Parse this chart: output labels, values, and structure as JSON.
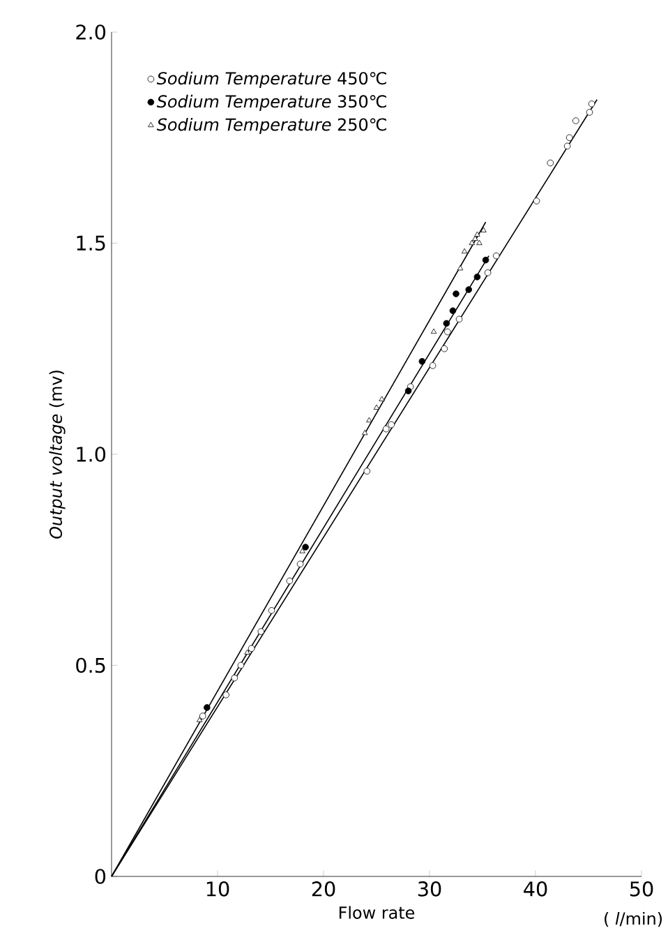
{
  "chart_data": {
    "type": "scatter",
    "xlabel": "Flow rate",
    "ylabel": "*Output voltage* (mv)",
    "annotations": [
      "( *l*/min)"
    ],
    "xlim": [
      0,
      50
    ],
    "ylim": [
      0,
      2.0
    ],
    "xticks": [
      10,
      20,
      30,
      40,
      50
    ],
    "yticks": [
      0,
      0.5,
      {
        "value": 1.0,
        "label": "1.0"
      },
      1.5,
      {
        "value": 2.0,
        "label": "2.0"
      }
    ],
    "legend": "top left",
    "grid": false,
    "series": [
      {
        "name": "*Sodium Temperature* 450℃",
        "color": "#ffffff",
        "marker": "circle",
        "x": [
          8.6,
          10.8,
          11.6,
          12.2,
          13.2,
          14.1,
          15.1,
          16.8,
          17.8,
          24.1,
          25.9,
          26.4,
          28.2,
          30.3,
          31.4,
          31.7,
          32.8,
          35.5,
          36.3,
          40.1,
          41.4,
          43.0,
          43.2,
          43.8,
          45.1,
          45.3
        ],
        "values": [
          0.38,
          0.43,
          0.47,
          0.5,
          0.54,
          0.58,
          0.63,
          0.7,
          0.74,
          0.96,
          1.06,
          1.07,
          1.16,
          1.21,
          1.25,
          1.29,
          1.32,
          1.43,
          1.47,
          1.6,
          1.69,
          1.73,
          1.75,
          1.79,
          1.81,
          1.83
        ]
      },
      {
        "name": "*Sodium Temperature* 350℃",
        "color": "#000000",
        "marker": "circle",
        "x": [
          9.0,
          18.3,
          28.0,
          29.3,
          31.6,
          32.2,
          32.5,
          33.7,
          34.5,
          35.3
        ],
        "values": [
          0.4,
          0.78,
          1.15,
          1.22,
          1.31,
          1.34,
          1.38,
          1.39,
          1.42,
          1.46
        ]
      },
      {
        "name": "*Sodium Temperature* 250℃",
        "color": "#ffffff",
        "marker": "triangle",
        "x": [
          8.3,
          12.8,
          18.0,
          23.9,
          24.3,
          25.0,
          25.5,
          30.4,
          32.9,
          33.3,
          34.0,
          34.3,
          34.5,
          34.7,
          35.1
        ],
        "values": [
          0.37,
          0.53,
          0.77,
          1.05,
          1.08,
          1.11,
          1.13,
          1.29,
          1.44,
          1.48,
          1.5,
          1.51,
          1.52,
          1.5,
          1.53
        ]
      },
      {
        "type": "line",
        "color": "#000000",
        "marker": "none",
        "line_style": "solid",
        "x": [
          0,
          45.8
        ],
        "values": [
          0,
          1.84
        ]
      },
      {
        "type": "line",
        "color": "#000000",
        "marker": "none",
        "line_style": "solid",
        "x": [
          0,
          35.6
        ],
        "values": [
          0,
          1.47
        ]
      },
      {
        "type": "line",
        "color": "#000000",
        "marker": "none",
        "line_style": "solid",
        "x": [
          0,
          35.3
        ],
        "values": [
          0,
          1.55
        ]
      }
    ]
  }
}
